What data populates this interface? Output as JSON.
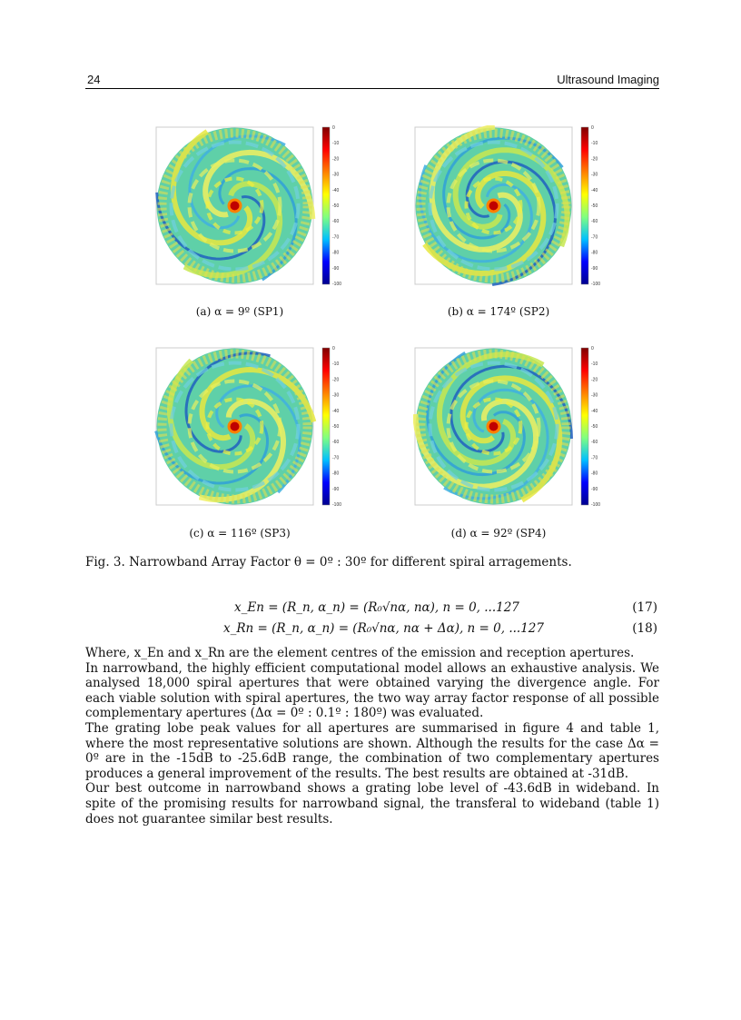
{
  "header": {
    "page_number": "24",
    "running_title": "Ultrasound Imaging"
  },
  "figure": {
    "colorbar_ticks": [
      "0",
      "-10",
      "-20",
      "-30",
      "-40",
      "-50",
      "-60",
      "-70",
      "-80",
      "-90",
      "-100"
    ],
    "colormap": [
      "#7f0000",
      "#ff0000",
      "#ff8000",
      "#ffff00",
      "#80ff80",
      "#00c0ff",
      "#0000ff",
      "#00008f"
    ],
    "panels": [
      {
        "caption": "(a) α = 9º (SP1)"
      },
      {
        "caption": "(b) α = 174º (SP2)"
      },
      {
        "caption": "(c) α = 116º (SP3)"
      },
      {
        "caption": "(d) α = 92º (SP4)"
      }
    ],
    "caption": "Fig. 3. Narrowband Array Factor θ = 0º : 30º for different spiral arragements."
  },
  "equations": [
    {
      "text": "x_En = (R_n, α_n) = (R₀√nα, nα), n = 0, ...127",
      "number": "(17)"
    },
    {
      "text": "x_Rn = (R_n, α_n) = (R₀√nα, nα + Δα), n = 0, ...127",
      "number": "(18)"
    }
  ],
  "paragraphs": [
    "Where, x_En and x_Rn are the element centres of the emission and reception apertures.",
    "In narrowband, the highly efficient computational model allows an exhaustive analysis. We analysed 18,000 spiral apertures that were obtained varying the divergence angle. For each viable solution with spiral apertures, the two way array factor response of all possible complementary apertures (Δα = 0º : 0.1º : 180º) was evaluated.",
    "The grating lobe peak values for all apertures are summarised in figure 4 and table 1, where the most representative solutions are shown. Although the results for the case Δα = 0º are in the -15dB to -25.6dB range, the combination of two complementary apertures produces a general improvement of the results. The best results are obtained at -31dB.",
    "Our best outcome in narrowband shows a grating lobe level of -43.6dB in wideband. In spite of the promising results for narrowband signal, the transferal to wideband (table 1) does not guarantee similar best results."
  ]
}
